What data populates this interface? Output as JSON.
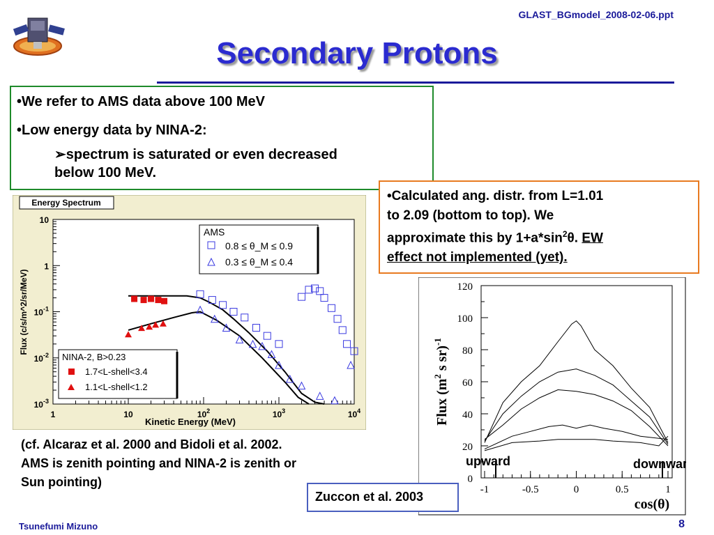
{
  "header": {
    "filename": "GLAST_BGmodel_2008-02-06.ppt",
    "title": "Secondary Protons"
  },
  "green_box": {
    "bullet1": "We refer to AMS data above 100 MeV",
    "bullet2": "Low energy data by NINA-2:",
    "sub1": "spectrum is saturated or even decreased",
    "sub2": "below 100 MeV."
  },
  "orange_box": {
    "line1": "•Calculated ang. distr. from L=1.01",
    "line2": "to 2.09 (bottom to top). We",
    "line3_a": "approximate this by 1+a*sin",
    "line3_sup": "2",
    "line3_b": "θ. ",
    "line3_ul": "EW",
    "line4_ul": "effect not implemented (yet)."
  },
  "caption": {
    "line1": "(cf. Alcaraz et al. 2000 and Bidoli et al. 2002.",
    "line2": "AMS is zenith pointing and NINA-2 is zenith or",
    "line3": "Sun pointing)"
  },
  "reference": "Zuccon et al. 2003",
  "footer": {
    "author": "Tsunefumi Mizuno",
    "page": "8"
  },
  "chart_data": [
    {
      "type": "scatter",
      "panel_label": "Energy Spectrum",
      "xlabel": "Kinetic Energy (MeV)",
      "ylabel": "Flux (c/s/m^2/sr/MeV)",
      "xscale": "log",
      "yscale": "log",
      "xlim": [
        1,
        10000
      ],
      "ylim": [
        0.001,
        10
      ],
      "x_ticks": [
        {
          "v": 1,
          "label": "1"
        },
        {
          "v": 10,
          "label": "10"
        },
        {
          "v": 100,
          "label": "10",
          "sup": "2"
        },
        {
          "v": 1000,
          "label": "10",
          "sup": "3"
        },
        {
          "v": 10000,
          "label": "10",
          "sup": "4"
        }
      ],
      "y_ticks": [
        {
          "v": 10,
          "label": "10"
        },
        {
          "v": 1,
          "label": "1"
        },
        {
          "v": 0.1,
          "label": "10",
          "sup": "-1"
        },
        {
          "v": 0.01,
          "label": "10",
          "sup": "-2"
        },
        {
          "v": 0.001,
          "label": "10",
          "sup": "-3"
        }
      ],
      "legend_groups": [
        {
          "title": "AMS",
          "entries": [
            "0.8 ≤ θ_M ≤ 0.9",
            "0.3 ≤ θ_M ≤ 0.4"
          ]
        },
        {
          "title": "NINA-2, B>0.23",
          "entries": [
            "1.7<L-shell<3.4",
            "1.1<L-shell<1.2"
          ]
        }
      ],
      "series": [
        {
          "name": "AMS 0.8 ≤ θM ≤ 0.9",
          "marker": "open-square",
          "color": "#3a3ae0",
          "x": [
            90,
            130,
            180,
            250,
            350,
            500,
            700,
            1000,
            2000,
            2500,
            3000,
            3500,
            4000,
            5000,
            6000,
            7000,
            8000,
            10000
          ],
          "y": [
            0.24,
            0.18,
            0.14,
            0.1,
            0.075,
            0.045,
            0.03,
            0.02,
            0.21,
            0.3,
            0.32,
            0.28,
            0.2,
            0.12,
            0.07,
            0.04,
            0.02,
            0.014
          ]
        },
        {
          "name": "AMS 0.3 ≤ θM ≤ 0.4",
          "marker": "open-triangle",
          "color": "#3a3ae0",
          "x": [
            90,
            140,
            200,
            300,
            450,
            600,
            800,
            1000,
            1400,
            2000,
            3500,
            5500,
            9000
          ],
          "y": [
            0.11,
            0.07,
            0.045,
            0.025,
            0.02,
            0.018,
            0.012,
            0.007,
            0.0035,
            0.0025,
            0.0015,
            0.0012,
            0.007
          ]
        },
        {
          "name": "NINA-2 1.7<L-shell<3.4",
          "marker": "filled-square",
          "color": "#e01010",
          "x": [
            12,
            16,
            20,
            25,
            30
          ],
          "y": [
            0.19,
            0.18,
            0.19,
            0.18,
            0.17
          ]
        },
        {
          "name": "NINA-2 1.1<L-shell<1.2",
          "marker": "filled-triangle",
          "color": "#e01010",
          "x": [
            10,
            15,
            19,
            23,
            29
          ],
          "y": [
            0.032,
            0.044,
            0.047,
            0.052,
            0.055
          ]
        }
      ],
      "model_curves": [
        {
          "x": [
            10,
            30,
            60,
            90,
            120,
            180,
            250,
            400,
            700,
            1200,
            2000,
            3000,
            4000
          ],
          "y": [
            0.22,
            0.22,
            0.22,
            0.2,
            0.16,
            0.11,
            0.07,
            0.035,
            0.014,
            0.005,
            0.0017,
            0.0011,
            0.001
          ]
        },
        {
          "x": [
            10,
            20,
            40,
            70,
            90,
            150,
            300,
            600,
            1200,
            1800,
            2500
          ],
          "y": [
            0.04,
            0.055,
            0.075,
            0.095,
            0.1,
            0.065,
            0.03,
            0.01,
            0.003,
            0.0014,
            0.001
          ]
        }
      ]
    },
    {
      "type": "line",
      "xlabel": "cos(θ)",
      "ylabel_a": "Flux (m",
      "ylabel_sup1": "2",
      "ylabel_b": " s sr)",
      "ylabel_sup2": "-1",
      "xlim": [
        -1,
        1
      ],
      "ylim": [
        0,
        120
      ],
      "x_ticks": [
        -1,
        -0.5,
        0,
        0.5,
        1
      ],
      "x_tick_labels": [
        "-1",
        "-0.5",
        "0",
        "0.5",
        "1"
      ],
      "y_ticks": [
        0,
        20,
        40,
        60,
        80,
        100,
        120
      ],
      "annotations": {
        "upward": "upward",
        "downward": "downward"
      },
      "series": [
        {
          "x": [
            -1.0,
            -0.8,
            -0.6,
            -0.4,
            -0.2,
            -0.05,
            0.0,
            0.05,
            0.2,
            0.4,
            0.6,
            0.8,
            1.0
          ],
          "y": [
            22,
            47,
            60,
            70,
            85,
            96,
            98,
            95,
            80,
            70,
            56,
            44,
            22
          ]
        },
        {
          "x": [
            -1.0,
            -0.8,
            -0.6,
            -0.4,
            -0.2,
            0.0,
            0.2,
            0.4,
            0.6,
            0.8,
            1.0
          ],
          "y": [
            23,
            40,
            51,
            60,
            66,
            68,
            64,
            58,
            48,
            38,
            21
          ]
        },
        {
          "x": [
            -1.0,
            -0.8,
            -0.6,
            -0.4,
            -0.2,
            0.0,
            0.2,
            0.4,
            0.6,
            0.8,
            1.0
          ],
          "y": [
            24,
            33,
            43,
            50,
            55,
            54,
            52,
            48,
            42,
            32,
            20
          ]
        },
        {
          "x": [
            -1.0,
            -0.7,
            -0.5,
            -0.3,
            -0.15,
            0.0,
            0.15,
            0.3,
            0.5,
            0.7,
            1.0
          ],
          "y": [
            18,
            26,
            29,
            32,
            33,
            31,
            33,
            31,
            29,
            26,
            24
          ]
        },
        {
          "x": [
            -1.0,
            -0.7,
            -0.4,
            -0.2,
            0.0,
            0.2,
            0.4,
            0.7,
            0.9,
            1.0
          ],
          "y": [
            17,
            22,
            23,
            24,
            24,
            24,
            23,
            22,
            20,
            26
          ]
        }
      ]
    }
  ]
}
